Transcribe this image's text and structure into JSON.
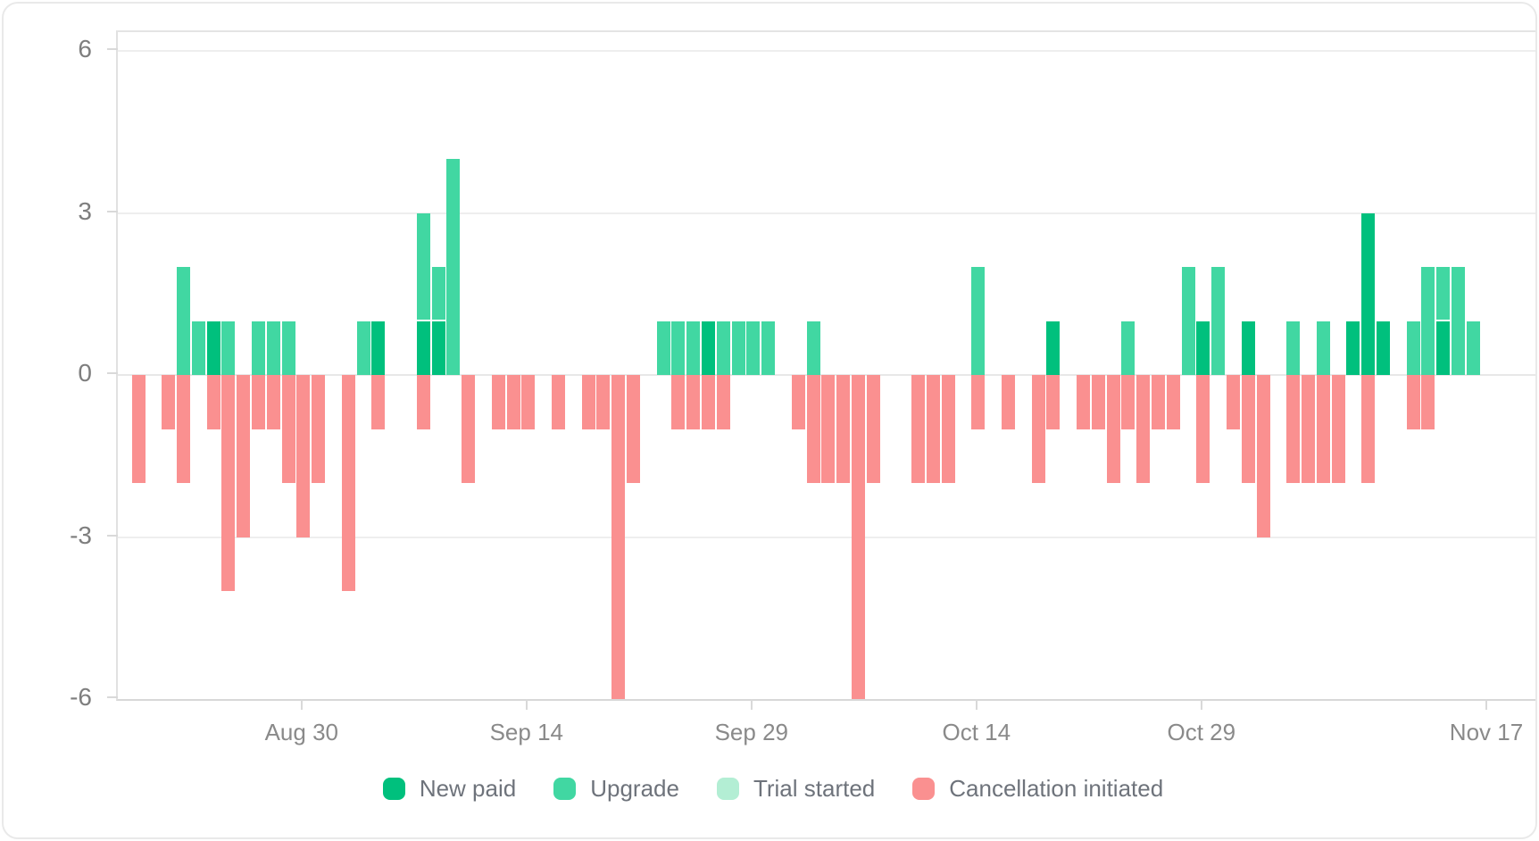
{
  "chart_data": {
    "type": "bar",
    "stacked": true,
    "title": "",
    "xlabel": "",
    "ylabel": "",
    "grid": true,
    "legend_position": "bottom",
    "y_ticks": [
      {
        "label": "6",
        "value": 6
      },
      {
        "label": "3",
        "value": 3
      },
      {
        "label": "0",
        "value": 0
      },
      {
        "label": "-3",
        "value": -3
      },
      {
        "label": "-6",
        "value": -6
      }
    ],
    "ylim": [
      -6.4,
      6.35
    ],
    "x_ticks": [
      {
        "label": "Aug 30",
        "day": 11
      },
      {
        "label": "Sep 14",
        "day": 26
      },
      {
        "label": "Sep 29",
        "day": 41
      },
      {
        "label": "Oct 14",
        "day": 56
      },
      {
        "label": "Oct 29",
        "day": 71
      },
      {
        "label": "Nov 17",
        "day": 90
      }
    ],
    "categories": [
      "Aug 19",
      "Aug 20",
      "Aug 21",
      "Aug 22",
      "Aug 23",
      "Aug 24",
      "Aug 25",
      "Aug 26",
      "Aug 27",
      "Aug 28",
      "Aug 29",
      "Aug 30",
      "Aug 31",
      "Sep 1",
      "Sep 2",
      "Sep 3",
      "Sep 4",
      "Sep 5",
      "Sep 6",
      "Sep 7",
      "Sep 8",
      "Sep 9",
      "Sep 10",
      "Sep 11",
      "Sep 12",
      "Sep 13",
      "Sep 14",
      "Sep 15",
      "Sep 16",
      "Sep 17",
      "Sep 18",
      "Sep 19",
      "Sep 20",
      "Sep 21",
      "Sep 22",
      "Sep 23",
      "Sep 24",
      "Sep 25",
      "Sep 26",
      "Sep 27",
      "Sep 28",
      "Sep 29",
      "Sep 30",
      "Oct 1",
      "Oct 2",
      "Oct 3",
      "Oct 4",
      "Oct 5",
      "Oct 6",
      "Oct 7",
      "Oct 8",
      "Oct 9",
      "Oct 10",
      "Oct 11",
      "Oct 12",
      "Oct 13",
      "Oct 14",
      "Oct 15",
      "Oct 16",
      "Oct 17",
      "Oct 18",
      "Oct 19",
      "Oct 20",
      "Oct 21",
      "Oct 22",
      "Oct 23",
      "Oct 24",
      "Oct 25",
      "Oct 26",
      "Oct 27",
      "Oct 28",
      "Oct 29",
      "Oct 30",
      "Oct 31",
      "Nov 1",
      "Nov 2",
      "Nov 3",
      "Nov 4",
      "Nov 5",
      "Nov 6",
      "Nov 7",
      "Nov 8",
      "Nov 9",
      "Nov 10",
      "Nov 11",
      "Nov 12",
      "Nov 13",
      "Nov 14",
      "Nov 15",
      "Nov 16"
    ],
    "series": [
      {
        "name": "New paid",
        "color": "#00c07d",
        "direction": "up",
        "values": [
          0,
          0,
          0,
          0,
          0,
          1,
          0,
          0,
          0,
          0,
          0,
          0,
          0,
          0,
          0,
          0,
          1,
          0,
          0,
          1,
          1,
          0,
          0,
          0,
          0,
          0,
          0,
          0,
          0,
          0,
          0,
          0,
          0,
          0,
          0,
          0,
          0,
          0,
          1,
          0,
          0,
          0,
          0,
          0,
          0,
          0,
          0,
          0,
          0,
          0,
          0,
          0,
          0,
          0,
          0,
          0,
          0,
          0,
          0,
          0,
          0,
          1,
          0,
          0,
          0,
          0,
          0,
          0,
          0,
          0,
          0,
          1,
          0,
          0,
          1,
          0,
          0,
          0,
          0,
          0,
          0,
          1,
          3,
          1,
          0,
          0,
          0,
          1,
          0,
          0
        ]
      },
      {
        "name": "Upgrade",
        "color": "#41d7a2",
        "direction": "up",
        "values": [
          0,
          0,
          0,
          2,
          1,
          0,
          1,
          0,
          1,
          1,
          1,
          0,
          0,
          0,
          0,
          1,
          0,
          0,
          0,
          2,
          1,
          4,
          0,
          0,
          0,
          0,
          0,
          0,
          0,
          0,
          0,
          0,
          0,
          0,
          0,
          1,
          1,
          1,
          0,
          1,
          1,
          1,
          1,
          0,
          0,
          1,
          0,
          0,
          0,
          0,
          0,
          0,
          0,
          0,
          0,
          0,
          2,
          0,
          0,
          0,
          0,
          0,
          0,
          0,
          0,
          0,
          1,
          0,
          0,
          0,
          2,
          0,
          2,
          0,
          0,
          0,
          0,
          1,
          0,
          1,
          0,
          0,
          0,
          0,
          0,
          1,
          2,
          1,
          2,
          1
        ]
      },
      {
        "name": "Trial started",
        "color": "#b3eed4",
        "direction": "up",
        "values": [
          0,
          0,
          0,
          0,
          0,
          0,
          0,
          0,
          0,
          0,
          0,
          0,
          0,
          0,
          0,
          0,
          0,
          0,
          0,
          0,
          0,
          0,
          0,
          0,
          0,
          0,
          0,
          0,
          0,
          0,
          0,
          0,
          0,
          0,
          0,
          0,
          0,
          0,
          0,
          0,
          0,
          0,
          0,
          0,
          0,
          0,
          0,
          0,
          0,
          0,
          0,
          0,
          0,
          0,
          0,
          0,
          0,
          0,
          0,
          0,
          0,
          0,
          0,
          0,
          0,
          0,
          0,
          0,
          0,
          0,
          0,
          0,
          0,
          0,
          0,
          0,
          0,
          0,
          0,
          0,
          0,
          0,
          0,
          0,
          0,
          0,
          0,
          0,
          0,
          0
        ]
      },
      {
        "name": "Cancellation initiated",
        "color": "#fa9090",
        "direction": "down",
        "values": [
          2,
          0,
          1,
          2,
          0,
          1,
          4,
          3,
          1,
          1,
          2,
          3,
          2,
          0,
          4,
          0,
          1,
          0,
          0,
          1,
          0,
          0,
          2,
          0,
          1,
          1,
          1,
          0,
          1,
          0,
          1,
          1,
          6,
          2,
          0,
          0,
          1,
          1,
          1,
          1,
          0,
          0,
          0,
          0,
          1,
          2,
          2,
          2,
          6,
          2,
          0,
          0,
          2,
          2,
          2,
          0,
          1,
          0,
          1,
          0,
          2,
          1,
          0,
          1,
          1,
          2,
          1,
          2,
          1,
          1,
          0,
          2,
          0,
          1,
          2,
          3,
          0,
          2,
          2,
          2,
          2,
          0,
          2,
          0,
          0,
          1,
          1,
          0,
          0,
          0
        ]
      }
    ],
    "legend": [
      {
        "label": "New paid",
        "color": "#00c07d"
      },
      {
        "label": "Upgrade",
        "color": "#41d7a2"
      },
      {
        "label": "Trial started",
        "color": "#b3eed4"
      },
      {
        "label": "Cancellation initiated",
        "color": "#fa9090"
      }
    ]
  }
}
